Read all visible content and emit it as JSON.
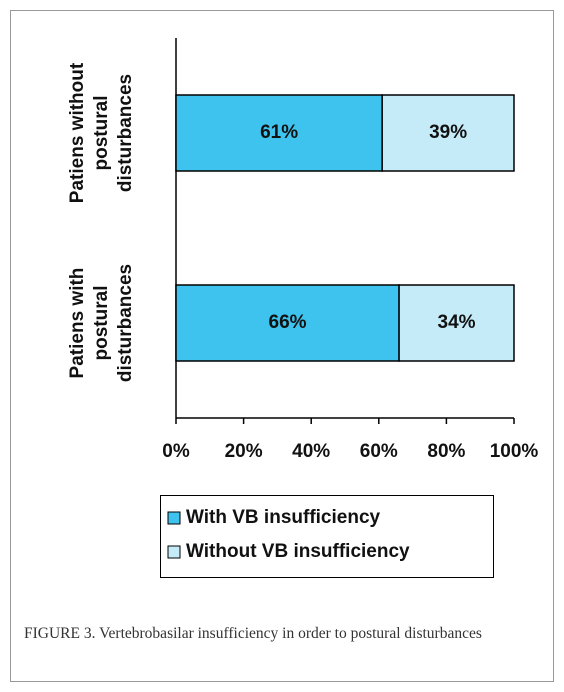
{
  "chart_data": {
    "type": "stacked_barh",
    "categories": [
      [
        "Patiens without",
        "postural",
        "disturbances"
      ],
      [
        "Patiens with",
        "postural",
        "disturbances"
      ]
    ],
    "series": [
      {
        "name": "With VB insufficiency",
        "color": "#3ec3ef",
        "values": [
          61,
          66
        ],
        "value_labels": [
          "61%",
          "66%"
        ]
      },
      {
        "name": "Without VB insufficiency",
        "color": "#c6ebf8",
        "values": [
          39,
          34
        ],
        "value_labels": [
          "39%",
          "34%"
        ]
      }
    ],
    "xlim": [
      0,
      100
    ],
    "xticks": [
      {
        "value": 0,
        "label": "0%"
      },
      {
        "value": 20,
        "label": "20%"
      },
      {
        "value": 40,
        "label": "40%"
      },
      {
        "value": 60,
        "label": "60%"
      },
      {
        "value": 80,
        "label": "80%"
      },
      {
        "value": 100,
        "label": "100%"
      }
    ],
    "caption": "FIGURE 3.  Vertebrobasilar insufficiency in order to postural disturbances"
  }
}
